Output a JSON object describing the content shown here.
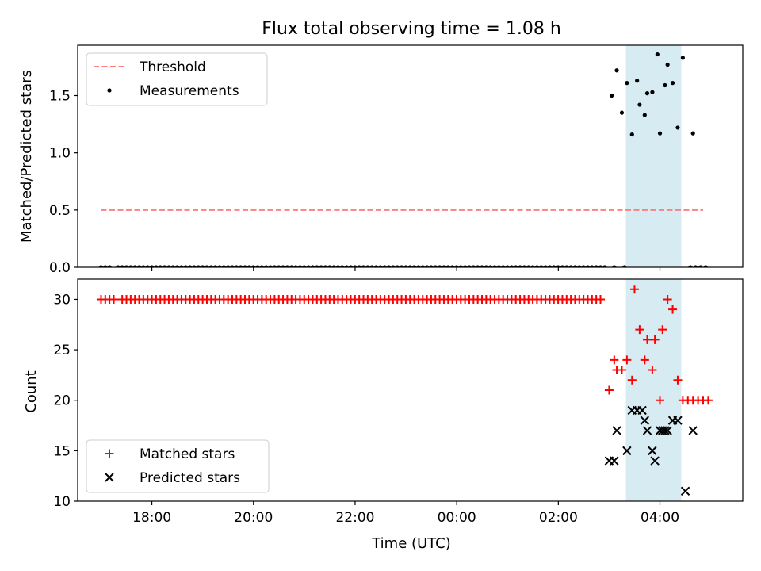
{
  "chart_data": [
    {
      "type": "scatter",
      "title": "Flux total observing time = 1.08 h",
      "xlabel": "",
      "ylabel": "Matched/Predicted stars",
      "ylim": [
        0,
        1.94
      ],
      "yticks": [
        0.0,
        0.5,
        1.0,
        1.5
      ],
      "ytick_labels": [
        "0.0",
        "0.5",
        "1.0",
        "1.5"
      ],
      "x_axis": "time of day (UTC), x values are hours after 00:00 on the first day",
      "xlim": [
        16.54,
        29.63
      ],
      "shaded_span": [
        27.33,
        28.42
      ],
      "shade_color": "#add8e6",
      "legend": {
        "placement": "upper left",
        "entries": [
          "Threshold",
          "Measurements"
        ]
      },
      "series": [
        {
          "name": "Threshold",
          "style": "dashed-line",
          "color": "#ff7f7f",
          "x": [
            17.0,
            28.85
          ],
          "values": [
            0.5,
            0.5
          ]
        },
        {
          "name": "Measurements",
          "style": "dots",
          "color": "#000000",
          "zero_x_start": 17.0,
          "zero_x_step": 0.0833,
          "zero_x_end": 26.95,
          "zero_x_missing": [
            17.25
          ],
          "zero_extra_x": [
            27.1,
            27.3,
            28.6,
            28.7,
            28.8,
            28.9
          ],
          "points": [
            [
              27.05,
              1.5
            ],
            [
              27.15,
              1.72
            ],
            [
              27.25,
              1.35
            ],
            [
              27.35,
              1.61
            ],
            [
              27.45,
              1.16
            ],
            [
              27.55,
              1.63
            ],
            [
              27.6,
              1.42
            ],
            [
              27.7,
              1.33
            ],
            [
              27.75,
              1.52
            ],
            [
              27.85,
              1.53
            ],
            [
              27.95,
              1.86
            ],
            [
              28.0,
              1.17
            ],
            [
              28.1,
              1.59
            ],
            [
              28.15,
              1.77
            ],
            [
              28.25,
              1.61
            ],
            [
              28.35,
              1.22
            ],
            [
              28.45,
              1.83
            ],
            [
              28.65,
              1.17
            ]
          ]
        }
      ]
    },
    {
      "type": "scatter",
      "xlabel": "Time (UTC)",
      "ylabel": "Count",
      "ylim": [
        10,
        32
      ],
      "yticks": [
        10,
        15,
        20,
        25,
        30
      ],
      "ytick_labels": [
        "10",
        "15",
        "20",
        "25",
        "30"
      ],
      "xlim": [
        16.54,
        29.63
      ],
      "xticks": [
        18,
        20,
        22,
        24,
        26,
        28
      ],
      "xtick_labels": [
        "18:00",
        "20:00",
        "22:00",
        "00:00",
        "02:00",
        "04:00"
      ],
      "shaded_span": [
        27.33,
        28.42
      ],
      "shade_color": "#add8e6",
      "legend": {
        "placement": "lower left",
        "entries": [
          "Matched stars",
          "Predicted stars"
        ]
      },
      "series": [
        {
          "name": "Matched stars",
          "marker": "plus",
          "color": "#ff0000",
          "constant_value": 30,
          "constant_x_start": 17.0,
          "constant_x_step": 0.0833,
          "constant_x_end": 26.9,
          "constant_x_missing": [
            17.33
          ],
          "points": [
            [
              27.0,
              21
            ],
            [
              27.1,
              24
            ],
            [
              27.15,
              23
            ],
            [
              27.25,
              23
            ],
            [
              27.35,
              24
            ],
            [
              27.45,
              22
            ],
            [
              27.5,
              31
            ],
            [
              27.6,
              27
            ],
            [
              27.7,
              24
            ],
            [
              27.75,
              26
            ],
            [
              27.85,
              23
            ],
            [
              27.9,
              26
            ],
            [
              28.0,
              20
            ],
            [
              28.05,
              27
            ],
            [
              28.15,
              30
            ],
            [
              28.25,
              29
            ],
            [
              28.35,
              22
            ],
            [
              28.45,
              20
            ],
            [
              28.55,
              20
            ],
            [
              28.65,
              20
            ],
            [
              28.75,
              20
            ],
            [
              28.85,
              20
            ],
            [
              28.95,
              20
            ]
          ]
        },
        {
          "name": "Predicted stars",
          "marker": "x",
          "color": "#000000",
          "points": [
            [
              27.0,
              14
            ],
            [
              27.1,
              14
            ],
            [
              27.15,
              17
            ],
            [
              27.35,
              15
            ],
            [
              27.45,
              19
            ],
            [
              27.55,
              19
            ],
            [
              27.65,
              19
            ],
            [
              27.7,
              18
            ],
            [
              27.75,
              17
            ],
            [
              27.85,
              15
            ],
            [
              27.9,
              14
            ],
            [
              28.0,
              17
            ],
            [
              28.05,
              17
            ],
            [
              28.1,
              17
            ],
            [
              28.15,
              17
            ],
            [
              28.25,
              18
            ],
            [
              28.35,
              18
            ],
            [
              28.5,
              11
            ],
            [
              28.65,
              17
            ]
          ]
        }
      ]
    }
  ]
}
